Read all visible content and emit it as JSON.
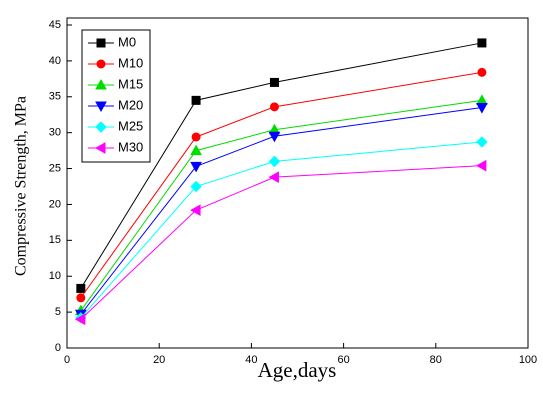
{
  "chart_data": {
    "type": "line",
    "x_label": "Age,days",
    "y_label": "Compressive Strength, MPa",
    "x": [
      3,
      28,
      45,
      90
    ],
    "series": [
      {
        "name": "M0",
        "color": "#000000",
        "marker": "square",
        "values": [
          8.3,
          34.5,
          37.0,
          42.5
        ]
      },
      {
        "name": "M10",
        "color": "#ff0000",
        "marker": "circle",
        "values": [
          7.0,
          29.4,
          33.6,
          38.4
        ]
      },
      {
        "name": "M15",
        "color": "#00dd00",
        "marker": "triangle-up",
        "values": [
          5.2,
          27.5,
          30.4,
          34.5
        ]
      },
      {
        "name": "M20",
        "color": "#0000ff",
        "marker": "triangle-down",
        "values": [
          4.7,
          25.3,
          29.5,
          33.5
        ]
      },
      {
        "name": "M25",
        "color": "#00ffff",
        "marker": "diamond",
        "values": [
          4.2,
          22.5,
          26.0,
          28.7
        ]
      },
      {
        "name": "M30",
        "color": "#ff00ff",
        "marker": "triangle-left",
        "values": [
          4.0,
          19.2,
          23.8,
          25.4
        ]
      }
    ],
    "xlim": [
      0,
      100
    ],
    "xticks": [
      0,
      20,
      40,
      60,
      80,
      100
    ],
    "ylim": [
      0,
      45
    ],
    "yticks": [
      0,
      5,
      10,
      15,
      20,
      25,
      30,
      35,
      40,
      45
    ],
    "legend": "upper left"
  }
}
